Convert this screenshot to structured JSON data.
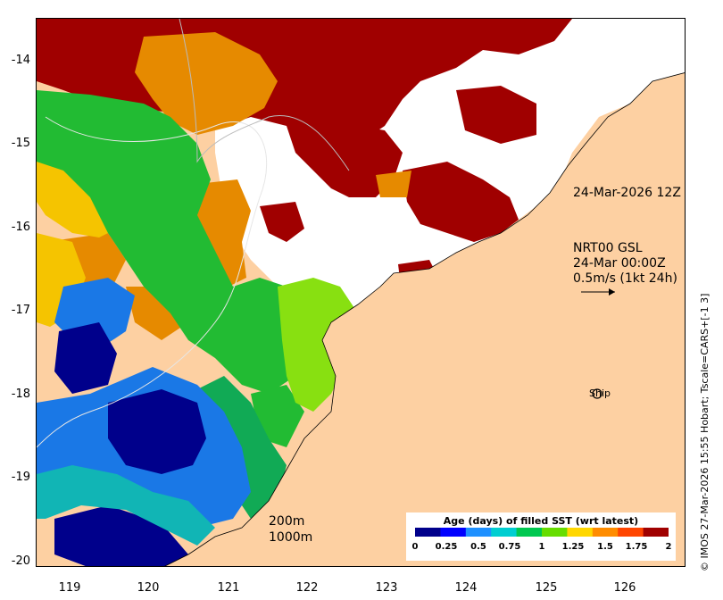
{
  "map": {
    "axes": {
      "lat_ticks": [
        "-14",
        "-15",
        "-16",
        "-17",
        "-18",
        "-19",
        "-20"
      ],
      "lon_ticks": [
        "119",
        "120",
        "121",
        "122",
        "123",
        "124",
        "125",
        "126"
      ]
    },
    "annotations": {
      "date_label": "24-Mar-2026 12Z",
      "product_line1": "NRT00 GSL",
      "product_line2": "24-Mar 00:00Z",
      "product_line3": "0.5m/s (1kt 24h)",
      "ship_label": "Ship",
      "depth_200": "200m",
      "depth_1000": "1000m"
    },
    "credit": "© IMOS 27-Mar-2026 15:55 Hobart; Tscale=CARS+[-1 3]",
    "legend": {
      "title": "Age (days) of filled SST (wrt latest)",
      "ticks": [
        "0",
        "0.25",
        "0.5",
        "0.75",
        "1",
        "1.25",
        "1.5",
        "1.75",
        "2"
      ],
      "colors": [
        "#00008b",
        "#0000ff",
        "#1e90ff",
        "#00ced1",
        "#00c850",
        "#66dd00",
        "#ffd700",
        "#ff8c00",
        "#ff4500",
        "#a00000"
      ]
    },
    "colors": {
      "land": "#fdd0a2",
      "age_2": "#a00000",
      "age_1_6": "#e68a00",
      "age_1_3": "#f5c400",
      "age_1": "#22bb33",
      "age_0_9": "#11aa55",
      "age_1_15": "#88e011",
      "age_0_5": "#1a78e6",
      "age_0_1": "#00008b",
      "age_0_7": "#11b5b5",
      "no_data": "#ffffff"
    }
  }
}
